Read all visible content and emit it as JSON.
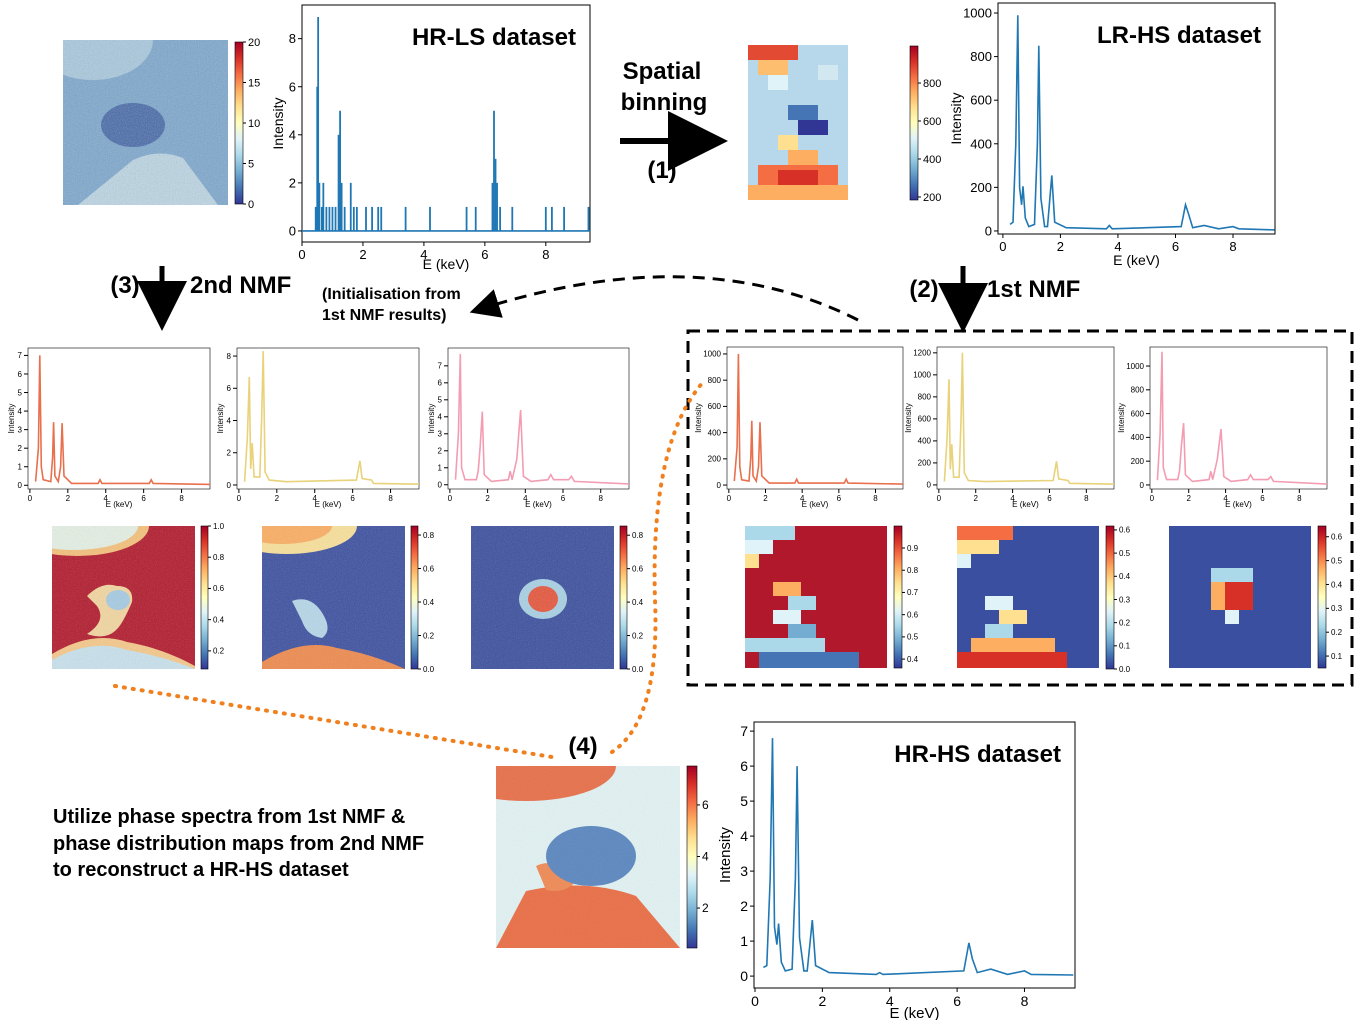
{
  "labels": {
    "binning": [
      "Spatial",
      "binning"
    ],
    "step1": "(1)",
    "step2": "(2)",
    "step3": "(3)",
    "step4": "(4)",
    "nmf1": "1st NMF",
    "nmf2": "2nd NMF",
    "init": [
      "(Initialisation from",
      "1st NMF results)"
    ],
    "summary": [
      "Utilize phase spectra from 1st NMF &",
      "phase distribution maps from 2nd NMF",
      "to reconstruct a HR-HS dataset"
    ]
  },
  "spectra": [
    {
      "type": "stem",
      "title": "HR-LS dataset",
      "ylabel": "Intensity",
      "xlabel": "E (keV)",
      "color": "#1f77b4",
      "xlim": [
        0,
        9.45
      ],
      "ylim": [
        -0.46,
        9.4
      ],
      "xticks": [
        0,
        2,
        4,
        6,
        8
      ],
      "yticks": [
        0,
        2,
        4,
        6,
        8
      ],
      "x": [
        0.45,
        0.5,
        0.53,
        0.57,
        0.65,
        0.7,
        0.8,
        0.9,
        1.0,
        1.1,
        1.2,
        1.25,
        1.3,
        1.4,
        1.6,
        1.7,
        1.8,
        2.1,
        2.3,
        2.5,
        2.6,
        3.4,
        4.2,
        5.4,
        5.7,
        6.25,
        6.3,
        6.35,
        6.4,
        6.5,
        6.9,
        8.0,
        8.2,
        8.6,
        9.4
      ],
      "values": [
        1,
        6,
        8.9,
        2,
        1,
        2,
        1,
        1,
        1,
        1,
        4,
        5,
        2,
        1,
        2,
        1,
        1,
        1,
        1,
        1,
        1,
        1,
        1,
        1,
        1,
        2,
        5,
        3,
        2,
        1,
        1,
        1,
        1,
        1,
        1
      ]
    },
    {
      "type": "line",
      "title": "LR-HS dataset",
      "ylabel": "Intensity",
      "xlabel": "E (keV)",
      "color": "#1f77b4",
      "xlim": [
        -0.17,
        9.46
      ],
      "ylim": [
        -14,
        1046
      ],
      "xticks": [
        0,
        2,
        4,
        6,
        8
      ],
      "yticks": [
        0,
        200,
        400,
        600,
        800,
        1000
      ],
      "x": [
        0.25,
        0.35,
        0.45,
        0.52,
        0.58,
        0.65,
        0.7,
        0.78,
        0.9,
        1.1,
        1.2,
        1.25,
        1.32,
        1.45,
        1.55,
        1.7,
        1.8,
        2.2,
        3.6,
        3.7,
        3.8,
        6.2,
        6.35,
        6.45,
        6.6,
        7.0,
        7.5,
        8.0,
        8.2,
        9.45
      ],
      "values": [
        30,
        40,
        400,
        990,
        200,
        120,
        205,
        60,
        20,
        30,
        400,
        850,
        150,
        20,
        20,
        255,
        40,
        15,
        10,
        25,
        10,
        20,
        120,
        80,
        15,
        25,
        10,
        20,
        10,
        5
      ]
    },
    {
      "type": "line",
      "title": "HR-HS dataset",
      "ylabel": "Intensity",
      "xlabel": "E (keV)",
      "color": "#1f77b4",
      "xlim": [
        -0.03,
        9.5
      ],
      "ylim": [
        -0.34,
        7.26
      ],
      "xticks": [
        0,
        2,
        4,
        6,
        8
      ],
      "yticks": [
        0,
        1,
        2,
        3,
        4,
        5,
        6,
        7
      ],
      "x": [
        0.25,
        0.35,
        0.45,
        0.52,
        0.58,
        0.65,
        0.7,
        0.78,
        0.9,
        1.1,
        1.2,
        1.25,
        1.32,
        1.45,
        1.55,
        1.7,
        1.8,
        2.2,
        3.6,
        3.7,
        3.8,
        6.2,
        6.35,
        6.45,
        6.6,
        7.0,
        7.5,
        8.0,
        8.2,
        9.45
      ],
      "values": [
        0.25,
        0.3,
        2.8,
        6.8,
        1.4,
        0.9,
        1.5,
        0.4,
        0.15,
        0.2,
        2.8,
        6,
        1.1,
        0.15,
        0.15,
        1.6,
        0.3,
        0.1,
        0.05,
        0.1,
        0.05,
        0.15,
        0.95,
        0.5,
        0.1,
        0.2,
        0.05,
        0.15,
        0.05,
        0.03
      ]
    },
    {
      "type": "line",
      "ylabel": "Intensity",
      "xlabel": "E (keV)",
      "color": "#e8704d",
      "xlim": [
        -0.1,
        9.5
      ],
      "ylim": [
        -0.2,
        7.4
      ],
      "xticks": [
        0,
        2,
        4,
        6,
        8
      ],
      "yticks": [
        0,
        1,
        2,
        3,
        4,
        5,
        6,
        7
      ],
      "x": [
        0.3,
        0.45,
        0.52,
        0.6,
        0.7,
        1.1,
        1.2,
        1.25,
        1.32,
        1.5,
        1.62,
        1.7,
        1.8,
        2.2,
        3.6,
        3.7,
        3.8,
        6.3,
        6.4,
        6.5,
        9.5
      ],
      "values": [
        0.2,
        2,
        7,
        1,
        0.3,
        0.2,
        1.5,
        3.4,
        0.5,
        0.2,
        1,
        3.35,
        0.5,
        0.1,
        0.1,
        0.3,
        0.1,
        0.1,
        0.3,
        0.1,
        0.05
      ]
    },
    {
      "type": "line",
      "ylabel": "Intensity",
      "xlabel": "E (keV)",
      "color": "#e8d27a",
      "xlim": [
        -0.1,
        9.5
      ],
      "ylim": [
        -0.25,
        8.5
      ],
      "xticks": [
        0,
        2,
        4,
        6,
        8
      ],
      "yticks": [
        0,
        2,
        4,
        6,
        8
      ],
      "x": [
        0.3,
        0.45,
        0.55,
        0.62,
        0.7,
        0.8,
        1.1,
        1.2,
        1.28,
        1.38,
        1.6,
        2.5,
        6.2,
        6.38,
        6.5,
        7.0,
        7.1,
        9.5
      ],
      "values": [
        0.2,
        3,
        6.7,
        1,
        2.6,
        0.5,
        0.5,
        4,
        8.3,
        0.8,
        0.3,
        0.2,
        0.3,
        1.5,
        0.4,
        0.3,
        0.1,
        0.05
      ]
    },
    {
      "type": "line",
      "ylabel": "Intensity",
      "xlabel": "E (keV)",
      "color": "#f39cb2",
      "xlim": [
        -0.1,
        9.5
      ],
      "ylim": [
        -0.25,
        8.05
      ],
      "xticks": [
        0,
        2,
        4,
        6,
        8
      ],
      "yticks": [
        0,
        1,
        2,
        3,
        4,
        5,
        6,
        7
      ],
      "x": [
        0.3,
        0.45,
        0.55,
        0.62,
        0.8,
        1.4,
        1.5,
        1.6,
        1.72,
        1.82,
        2.2,
        3.1,
        3.2,
        3.3,
        3.55,
        3.75,
        3.9,
        4.3,
        5.2,
        5.35,
        5.5,
        6.3,
        6.45,
        6.6,
        9.5
      ],
      "values": [
        0.3,
        3,
        7.7,
        1,
        0.3,
        0.3,
        0.8,
        2.2,
        4.3,
        0.6,
        0.2,
        0.3,
        0.8,
        0.3,
        1.5,
        4.4,
        0.5,
        0.2,
        0.3,
        0.6,
        0.3,
        0.3,
        0.5,
        0.2,
        0.05
      ]
    },
    {
      "type": "line",
      "ylabel": "Intensity",
      "xlabel": "E (keV)",
      "color": "#e8704d",
      "xlim": [
        -0.1,
        9.5
      ],
      "ylim": [
        -30,
        1053
      ],
      "xticks": [
        0,
        2,
        4,
        6,
        8
      ],
      "yticks": [
        0,
        200,
        400,
        600,
        800,
        1000
      ],
      "x": [
        0.3,
        0.45,
        0.52,
        0.6,
        0.7,
        1.1,
        1.2,
        1.25,
        1.32,
        1.5,
        1.62,
        1.7,
        1.8,
        2.2,
        3.6,
        3.7,
        3.8,
        6.3,
        6.4,
        6.5,
        9.5
      ],
      "values": [
        30,
        290,
        1000,
        140,
        40,
        30,
        210,
        490,
        70,
        30,
        140,
        480,
        70,
        15,
        15,
        45,
        15,
        15,
        45,
        15,
        7
      ]
    },
    {
      "type": "line",
      "ylabel": "Intensity",
      "xlabel": "E (keV)",
      "color": "#e8d27a",
      "xlim": [
        -0.1,
        9.5
      ],
      "ylim": [
        -37,
        1253
      ],
      "xticks": [
        0,
        2,
        4,
        6,
        8
      ],
      "yticks": [
        0,
        200,
        400,
        600,
        800,
        1000,
        1200
      ],
      "x": [
        0.3,
        0.45,
        0.55,
        0.62,
        0.7,
        0.8,
        1.1,
        1.2,
        1.28,
        1.38,
        1.6,
        2.5,
        6.2,
        6.38,
        6.5,
        7.0,
        7.1,
        9.5
      ],
      "values": [
        30,
        430,
        960,
        140,
        370,
        70,
        70,
        580,
        1200,
        110,
        40,
        30,
        40,
        215,
        55,
        40,
        15,
        7
      ]
    },
    {
      "type": "line",
      "ylabel": "Intensity",
      "xlabel": "E (keV)",
      "color": "#f39cb2",
      "xlim": [
        -0.1,
        9.5
      ],
      "ylim": [
        -34,
        1160
      ],
      "xticks": [
        0,
        2,
        4,
        6,
        8
      ],
      "yticks": [
        0,
        200,
        400,
        600,
        800,
        1000
      ],
      "x": [
        0.3,
        0.45,
        0.55,
        0.62,
        0.8,
        1.4,
        1.5,
        1.6,
        1.72,
        1.82,
        2.2,
        3.1,
        3.2,
        3.3,
        3.55,
        3.75,
        3.9,
        4.3,
        5.2,
        5.35,
        5.5,
        6.3,
        6.45,
        6.6,
        9.5
      ],
      "values": [
        40,
        430,
        1120,
        145,
        45,
        45,
        115,
        320,
        520,
        85,
        30,
        45,
        115,
        45,
        215,
        470,
        70,
        30,
        45,
        85,
        45,
        45,
        70,
        30,
        7
      ]
    }
  ],
  "colorbars": [
    {
      "lim": [
        0,
        20
      ],
      "ticks": [
        0,
        5,
        10,
        15,
        20
      ]
    },
    {
      "lim": [
        184,
        995
      ],
      "ticks": [
        200,
        400,
        600,
        800
      ]
    },
    {
      "lim": [
        0.084,
        1.0
      ],
      "ticks": [
        0.2,
        0.4,
        0.6,
        0.8,
        {
          "value": 1.0,
          "label": "1.0"
        }
      ]
    },
    {
      "lim": [
        0,
        0.854
      ],
      "ticks": [
        {
          "value": 0,
          "label": "0.0"
        },
        0.2,
        0.4,
        0.6,
        0.8
      ]
    },
    {
      "lim": [
        0,
        0.855
      ],
      "ticks": [
        {
          "value": 0,
          "label": "0.0"
        },
        0.2,
        0.4,
        0.6,
        0.8
      ]
    },
    {
      "lim": [
        0.36,
        0.999
      ],
      "ticks": [
        0.4,
        0.5,
        0.6,
        0.7,
        0.8,
        0.9
      ]
    },
    {
      "lim": [
        0,
        0.617
      ],
      "ticks": [
        {
          "value": 0,
          "label": "0.0"
        },
        0.1,
        0.2,
        0.3,
        0.4,
        0.5,
        0.6
      ]
    },
    {
      "lim": [
        0.05,
        0.645
      ],
      "ticks": [
        0.1,
        0.2,
        0.3,
        0.4,
        0.5,
        0.6
      ]
    },
    {
      "lim": [
        0.45,
        7.51
      ],
      "ticks": [
        2,
        4,
        6
      ]
    }
  ]
}
